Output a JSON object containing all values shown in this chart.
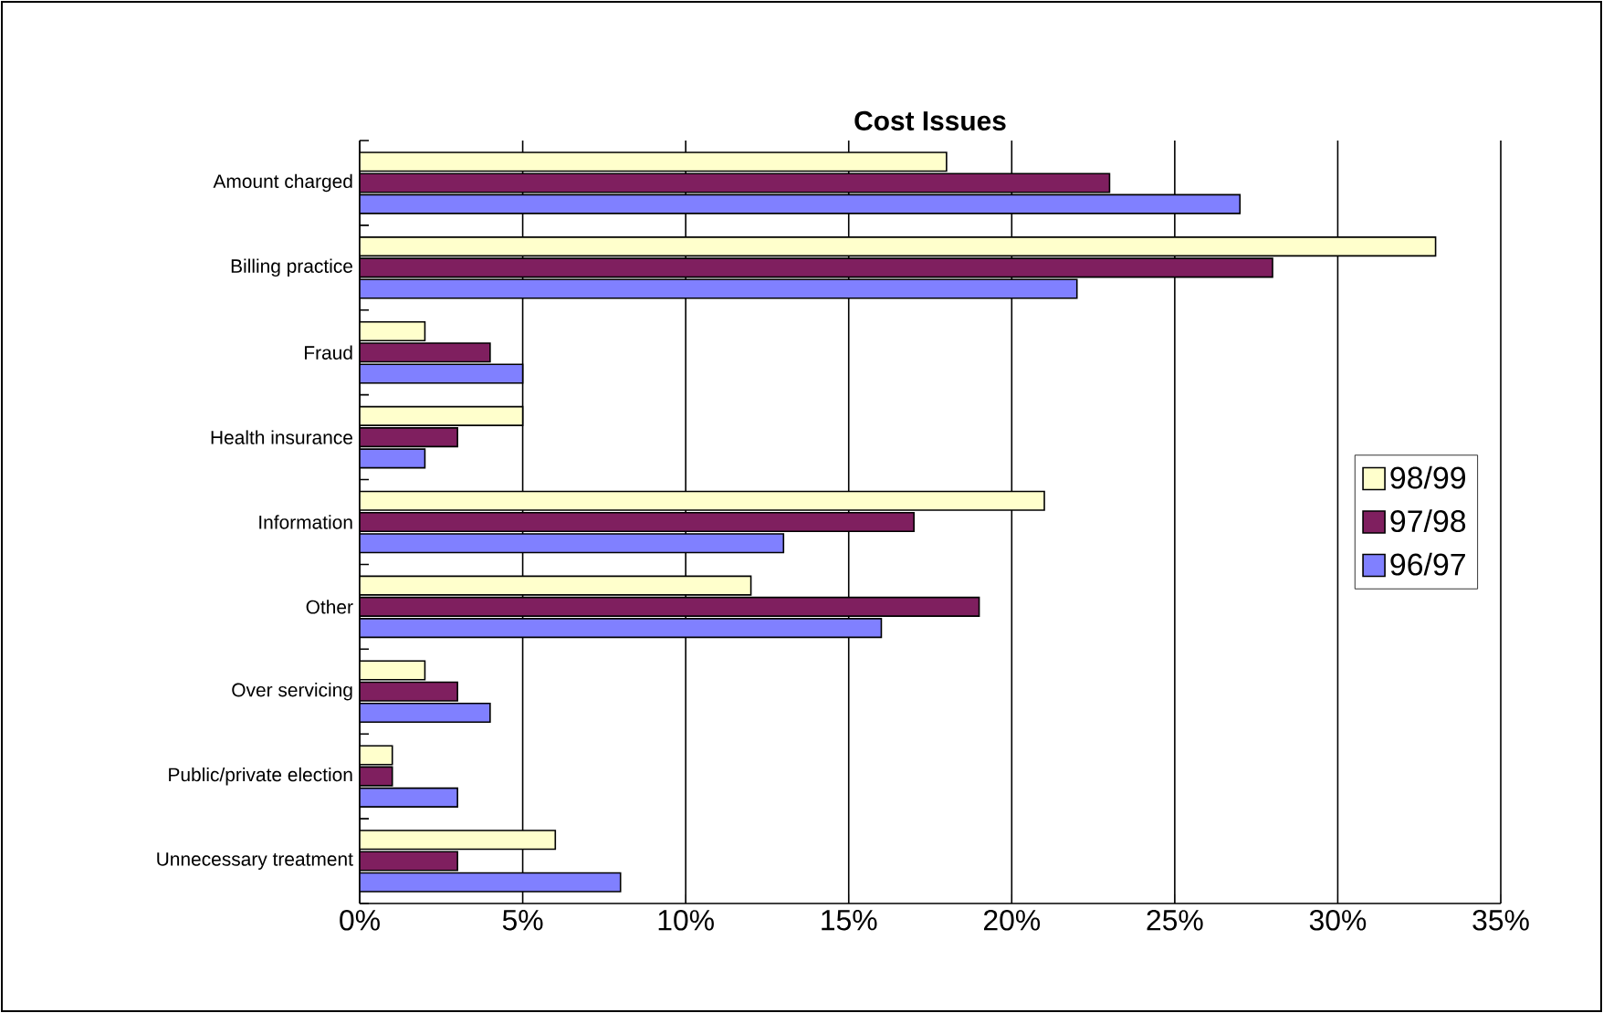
{
  "chart_data": {
    "type": "bar",
    "orientation": "horizontal",
    "title": "Cost Issues",
    "categories": [
      "Amount charged",
      "Billing practice",
      "Fraud",
      "Health insurance",
      "Information",
      "Other",
      "Over servicing",
      "Public/private election",
      "Unnecessary treatment"
    ],
    "series": [
      {
        "name": "98/99",
        "color": "#ffffcc",
        "values": [
          18,
          33,
          2,
          5,
          21,
          12,
          2,
          1,
          6
        ]
      },
      {
        "name": "97/98",
        "color": "#7f1f5f",
        "values": [
          23,
          28,
          4,
          3,
          17,
          19,
          3,
          1,
          3
        ]
      },
      {
        "name": "96/97",
        "color": "#8080ff",
        "values": [
          27,
          22,
          5,
          2,
          13,
          16,
          4,
          3,
          8
        ]
      }
    ],
    "xlim": [
      0,
      35
    ],
    "xticks": [
      {
        "value": 0,
        "label": "0%"
      },
      {
        "value": 5,
        "label": "5%"
      },
      {
        "value": 10,
        "label": "10%"
      },
      {
        "value": 15,
        "label": "15%"
      },
      {
        "value": 20,
        "label": "20%"
      },
      {
        "value": 25,
        "label": "25%"
      },
      {
        "value": 30,
        "label": "30%"
      },
      {
        "value": 35,
        "label": "35%"
      }
    ],
    "grid": "x",
    "legend": "right"
  }
}
